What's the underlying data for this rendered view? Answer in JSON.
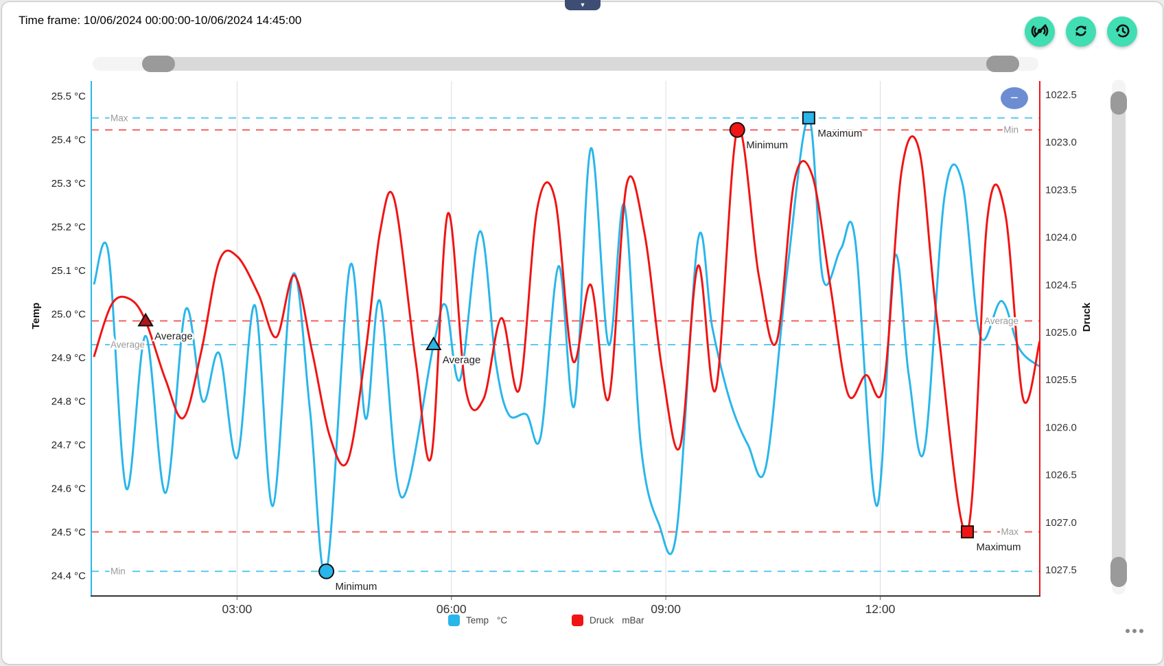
{
  "header": {
    "time_frame": "Time frame: 10/06/2024 00:00:00-10/06/2024 14:45:00"
  },
  "toolbar": {
    "buttons": [
      {
        "name": "live-updates-off"
      },
      {
        "name": "refresh"
      },
      {
        "name": "history"
      }
    ]
  },
  "controls": {
    "dropdown_arrow_glyph": "▼",
    "zoom_out_glyph": "−"
  },
  "legend": {
    "items": [
      {
        "label": "Temp",
        "unit": "°C",
        "color": "#29b6ea"
      },
      {
        "label": "Druck",
        "unit": "mBar",
        "color": "#f11414"
      }
    ]
  },
  "colors": {
    "temp": "#29b6ea",
    "druck": "#f11414",
    "temp_dash": "#5bc9f2",
    "druck_dash": "#f56060",
    "grid": "#dcdcdc",
    "axis_bottom": "#333333",
    "edge_label": "#9a9a9a",
    "marker_label": "#222222",
    "toolbar_green": "#41ddb3",
    "tab_navy": "#3d4d73",
    "bubble_blue": "#6d8dd3",
    "slider_track_light": "#f4f4f4",
    "slider_track_mid": "#d9d9d9",
    "slider_handle": "#9a9a9a",
    "druck_triangle": "#b5121b"
  },
  "chart_data": {
    "type": "line",
    "title": "",
    "x_axis": {
      "visible_range": [
        "01:00",
        "14:14"
      ],
      "ticks": [
        {
          "hours": 3,
          "label": "03:00"
        },
        {
          "hours": 6,
          "label": "06:00"
        },
        {
          "hours": 9,
          "label": "09:00"
        },
        {
          "hours": 12,
          "label": "12:00"
        }
      ]
    },
    "y_axis_left": {
      "title": "Temp",
      "unit": "°C",
      "min": 24.4,
      "max": 25.5,
      "tick_step": 0.1,
      "tick_labels": [
        "25.5 °C",
        "25.4 °C",
        "25.3 °C",
        "25.2 °C",
        "25.1 °C",
        "25.0 °C",
        "24.9 °C",
        "24.8 °C",
        "24.7 °C",
        "24.6 °C",
        "24.5 °C",
        "24.4 °C"
      ]
    },
    "y_axis_right": {
      "title": "Druck",
      "unit": "mBar",
      "min": 1022.5,
      "max": 1027.5,
      "tick_step": 0.5,
      "inverted": true,
      "tick_labels": [
        "1022.5",
        "1023.0",
        "1023.5",
        "1024.0",
        "1024.5",
        "1025.0",
        "1025.5",
        "1026.0",
        "1026.5",
        "1027.0",
        "1027.5"
      ]
    },
    "series": [
      {
        "name": "Temp",
        "unit": "°C",
        "axis": "left",
        "color": "#29b6ea",
        "points": [
          [
            1.0,
            25.07
          ],
          [
            1.2,
            25.14
          ],
          [
            1.45,
            24.6
          ],
          [
            1.72,
            24.95
          ],
          [
            2.0,
            24.59
          ],
          [
            2.28,
            25.01
          ],
          [
            2.52,
            24.8
          ],
          [
            2.75,
            24.91
          ],
          [
            3.0,
            24.67
          ],
          [
            3.25,
            25.02
          ],
          [
            3.5,
            24.56
          ],
          [
            3.78,
            25.09
          ],
          [
            4.02,
            24.78
          ],
          [
            4.25,
            24.41
          ],
          [
            4.58,
            25.11
          ],
          [
            4.8,
            24.76
          ],
          [
            5.0,
            25.03
          ],
          [
            5.3,
            24.58
          ],
          [
            5.75,
            24.93
          ],
          [
            5.92,
            25.02
          ],
          [
            6.12,
            24.85
          ],
          [
            6.4,
            25.19
          ],
          [
            6.62,
            24.89
          ],
          [
            6.8,
            24.77
          ],
          [
            7.05,
            24.77
          ],
          [
            7.25,
            24.72
          ],
          [
            7.5,
            25.11
          ],
          [
            7.72,
            24.79
          ],
          [
            7.95,
            25.38
          ],
          [
            8.2,
            24.93
          ],
          [
            8.42,
            25.25
          ],
          [
            8.65,
            24.7
          ],
          [
            8.9,
            24.52
          ],
          [
            9.15,
            24.5
          ],
          [
            9.45,
            25.17
          ],
          [
            9.65,
            24.97
          ],
          [
            9.9,
            24.8
          ],
          [
            10.15,
            24.7
          ],
          [
            10.4,
            24.65
          ],
          [
            10.7,
            25.1
          ],
          [
            11.0,
            25.45
          ],
          [
            11.2,
            25.08
          ],
          [
            11.45,
            25.15
          ],
          [
            11.65,
            25.17
          ],
          [
            11.95,
            24.56
          ],
          [
            12.2,
            25.13
          ],
          [
            12.4,
            24.86
          ],
          [
            12.62,
            24.69
          ],
          [
            12.9,
            25.27
          ],
          [
            13.15,
            25.3
          ],
          [
            13.4,
            24.95
          ],
          [
            13.7,
            25.03
          ],
          [
            13.95,
            24.92
          ],
          [
            14.23,
            24.88
          ]
        ]
      },
      {
        "name": "Druck",
        "unit": "mBar",
        "axis": "right",
        "color": "#f11414",
        "points": [
          [
            1.0,
            1025.25
          ],
          [
            1.25,
            1024.7
          ],
          [
            1.5,
            1024.65
          ],
          [
            1.72,
            1024.88
          ],
          [
            2.0,
            1025.5
          ],
          [
            2.25,
            1025.9
          ],
          [
            2.5,
            1025.2
          ],
          [
            2.75,
            1024.25
          ],
          [
            3.0,
            1024.2
          ],
          [
            3.3,
            1024.6
          ],
          [
            3.55,
            1025.05
          ],
          [
            3.8,
            1024.4
          ],
          [
            4.05,
            1025.2
          ],
          [
            4.3,
            1026.1
          ],
          [
            4.55,
            1026.35
          ],
          [
            4.8,
            1025.2
          ],
          [
            5.0,
            1023.95
          ],
          [
            5.2,
            1023.6
          ],
          [
            5.5,
            1025.3
          ],
          [
            5.72,
            1026.3
          ],
          [
            5.95,
            1023.75
          ],
          [
            6.2,
            1025.6
          ],
          [
            6.45,
            1025.7
          ],
          [
            6.7,
            1024.85
          ],
          [
            6.95,
            1025.6
          ],
          [
            7.2,
            1023.7
          ],
          [
            7.45,
            1023.6
          ],
          [
            7.7,
            1025.3
          ],
          [
            7.95,
            1024.5
          ],
          [
            8.2,
            1025.7
          ],
          [
            8.45,
            1023.45
          ],
          [
            8.7,
            1023.95
          ],
          [
            8.95,
            1025.4
          ],
          [
            9.2,
            1026.2
          ],
          [
            9.45,
            1024.3
          ],
          [
            9.7,
            1025.6
          ],
          [
            10.0,
            1022.87
          ],
          [
            10.3,
            1024.4
          ],
          [
            10.55,
            1025.1
          ],
          [
            10.8,
            1023.4
          ],
          [
            11.05,
            1023.35
          ],
          [
            11.3,
            1024.5
          ],
          [
            11.55,
            1025.65
          ],
          [
            11.8,
            1025.45
          ],
          [
            12.05,
            1025.55
          ],
          [
            12.3,
            1023.3
          ],
          [
            12.55,
            1023.1
          ],
          [
            12.8,
            1024.9
          ],
          [
            13.22,
            1027.1
          ],
          [
            13.5,
            1023.8
          ],
          [
            13.75,
            1023.75
          ],
          [
            14.0,
            1025.7
          ],
          [
            14.23,
            1025.1
          ]
        ]
      }
    ],
    "annotation_lines": [
      {
        "series": "temp",
        "stat": "max",
        "value": 25.45,
        "label": "Max",
        "label_side": "left"
      },
      {
        "series": "temp",
        "stat": "average",
        "value": 24.93,
        "label": "Average",
        "label_side": "left"
      },
      {
        "series": "temp",
        "stat": "min",
        "value": 24.41,
        "label": "Min",
        "label_side": "left"
      },
      {
        "series": "druck",
        "stat": "min",
        "value": 1022.87,
        "label": "Min",
        "label_side": "right"
      },
      {
        "series": "druck",
        "stat": "average",
        "value": 1024.88,
        "label": "Average",
        "label_side": "right"
      },
      {
        "series": "druck",
        "stat": "max",
        "value": 1027.1,
        "label": "Max",
        "label_side": "right"
      }
    ],
    "markers": [
      {
        "series": "temp",
        "stat": "minimum",
        "shape": "circle",
        "hours": 4.25,
        "value": 24.41,
        "label": "Minimum"
      },
      {
        "series": "temp",
        "stat": "maximum",
        "shape": "square",
        "hours": 11.0,
        "value": 25.45,
        "label": "Maximum"
      },
      {
        "series": "temp",
        "stat": "average",
        "shape": "triangle",
        "hours": 5.75,
        "value": 24.93,
        "label": "Average"
      },
      {
        "series": "druck",
        "stat": "minimum",
        "shape": "circle",
        "hours": 10.0,
        "value": 1022.87,
        "label": "Minimum"
      },
      {
        "series": "druck",
        "stat": "maximum",
        "shape": "square",
        "hours": 13.22,
        "value": 1027.1,
        "label": "Maximum"
      },
      {
        "series": "druck",
        "stat": "average",
        "shape": "triangle",
        "hours": 1.72,
        "value": 1024.88,
        "label": "Average"
      }
    ]
  }
}
